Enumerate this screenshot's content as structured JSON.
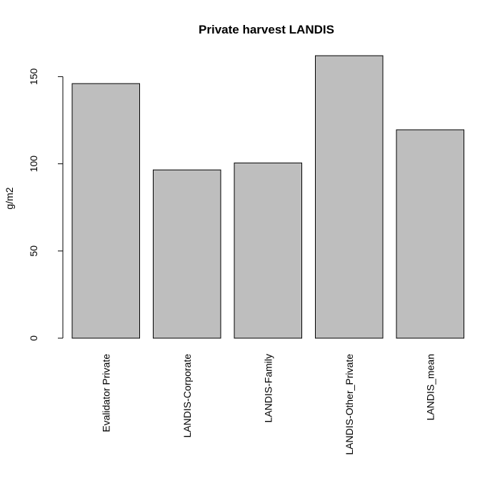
{
  "chart_data": {
    "type": "bar",
    "title": "Private harvest LANDIS",
    "xlabel": "",
    "ylabel": "g/m2",
    "categories": [
      "Evalidator Private",
      "LANDIS-Corporate",
      "LANDIS-Family",
      "LANDIS-Other_Private",
      "LANDIS_mean"
    ],
    "values": [
      146,
      96.5,
      100.5,
      162,
      119.5
    ],
    "ylim": [
      0,
      165
    ],
    "yticks": [
      0,
      50,
      100,
      150
    ],
    "grid": false,
    "legend": "none",
    "bar_fill": "#bebebe",
    "bar_stroke": "#000000"
  }
}
